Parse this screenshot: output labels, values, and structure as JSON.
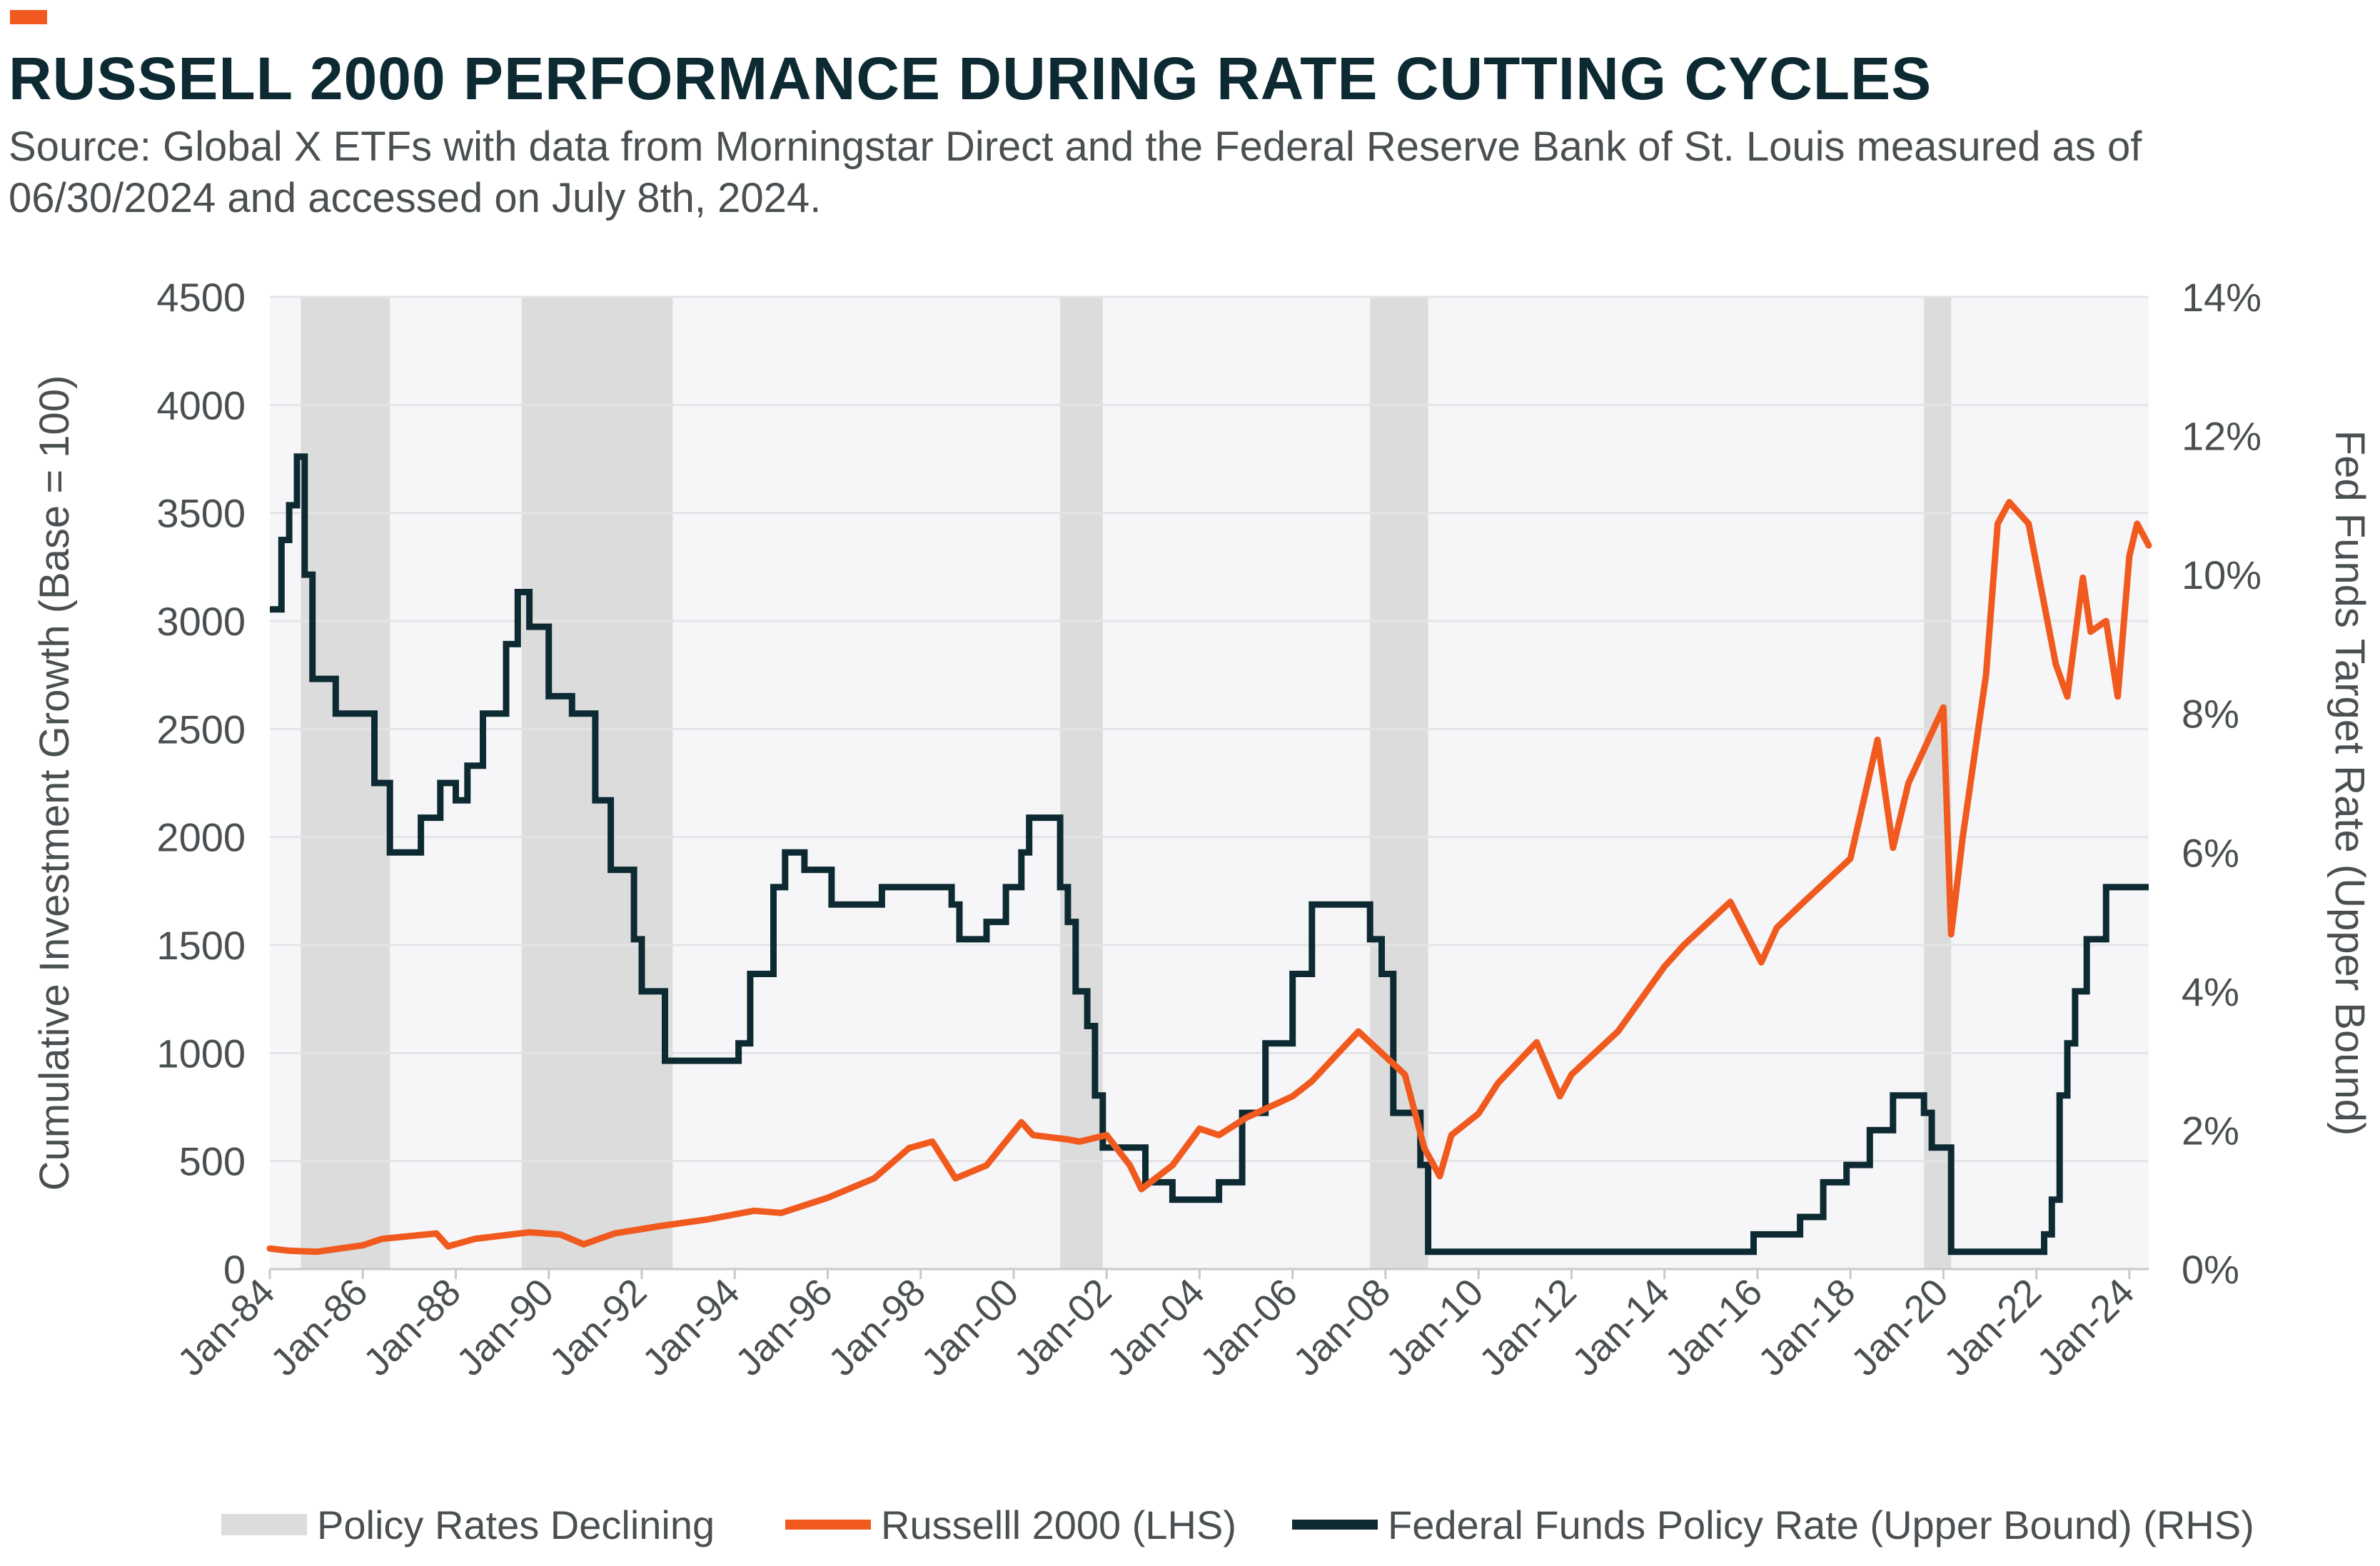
{
  "header": {
    "title": "RUSSELL 2000 PERFORMANCE DURING RATE CUTTING CYCLES",
    "subtitle": "Source: Global X ETFs with data from Morningstar Direct and the Federal Reserve Bank of St. Louis measured as of 06/30/2024 and accessed on July 8th, 2024."
  },
  "colors": {
    "accent": "#f05a1e",
    "russell": "#f05a1e",
    "fed": "#0d2a33",
    "shade": "#dcdcdc",
    "plot_bg": "#f6f6f8"
  },
  "chart_data": {
    "type": "line",
    "x_type": "date",
    "x_range": [
      "1984-01",
      "2024-06"
    ],
    "x_ticks": [
      "Jan-84",
      "Jan-86",
      "Jan-88",
      "Jan-90",
      "Jan-92",
      "Jan-94",
      "Jan-96",
      "Jan-98",
      "Jan-00",
      "Jan-02",
      "Jan-04",
      "Jan-06",
      "Jan-08",
      "Jan-10",
      "Jan-12",
      "Jan-14",
      "Jan-16",
      "Jan-18",
      "Jan-20",
      "Jan-22",
      "Jan-24"
    ],
    "x_tick_dates": [
      "1984-01",
      "1986-01",
      "1988-01",
      "1990-01",
      "1992-01",
      "1994-01",
      "1996-01",
      "1998-01",
      "2000-01",
      "2002-01",
      "2004-01",
      "2006-01",
      "2008-01",
      "2010-01",
      "2012-01",
      "2014-01",
      "2016-01",
      "2018-01",
      "2020-01",
      "2022-01",
      "2024-01"
    ],
    "ylabel_left": "Cumulative Investment Growth (Base = 100)",
    "ylabel_right": "Fed Funds Target Rate (Upper Bound)",
    "ylim_left": [
      0,
      4500
    ],
    "ylim_right": [
      0,
      14
    ],
    "y_ticks_left": [
      "0",
      "500",
      "1000",
      "1500",
      "2000",
      "2500",
      "3000",
      "3500",
      "4000",
      "4500"
    ],
    "y_ticks_right": [
      "0%",
      "2%",
      "4%",
      "6%",
      "8%",
      "10%",
      "12%",
      "14%"
    ],
    "y_tick_values_left": [
      0,
      500,
      1000,
      1500,
      2000,
      2500,
      3000,
      3500,
      4000,
      4500
    ],
    "y_tick_values_right": [
      0,
      2,
      4,
      6,
      8,
      10,
      12,
      14
    ],
    "grid": "horizontal",
    "legend_position": "bottom",
    "shaded_periods": {
      "name": "Policy Rates Declining",
      "ranges": [
        [
          "1984-09",
          "1986-08"
        ],
        [
          "1989-06",
          "1992-09"
        ],
        [
          "2001-01",
          "2001-12"
        ],
        [
          "2007-09",
          "2008-12"
        ],
        [
          "2019-08",
          "2020-03"
        ]
      ]
    },
    "series": [
      {
        "name": "Russelll 2000 (LHS)",
        "axis": "left",
        "x": [
          "1984-01",
          "1984-06",
          "1985-01",
          "1986-01",
          "1986-06",
          "1987-08",
          "1987-11",
          "1988-06",
          "1989-08",
          "1990-04",
          "1990-10",
          "1991-06",
          "1992-06",
          "1993-06",
          "1994-06",
          "1995-01",
          "1996-01",
          "1997-01",
          "1997-10",
          "1998-04",
          "1998-10",
          "1999-06",
          "2000-03",
          "2000-06",
          "2001-03",
          "2001-06",
          "2002-01",
          "2002-07",
          "2002-10",
          "2003-06",
          "2004-01",
          "2004-06",
          "2005-01",
          "2006-01",
          "2006-06",
          "2007-06",
          "2007-09",
          "2008-06",
          "2008-11",
          "2009-03",
          "2009-06",
          "2010-01",
          "2010-06",
          "2011-04",
          "2011-10",
          "2012-01",
          "2013-01",
          "2014-01",
          "2014-06",
          "2015-06",
          "2016-02",
          "2016-06",
          "2017-01",
          "2018-01",
          "2018-08",
          "2018-12",
          "2019-04",
          "2020-01",
          "2020-03",
          "2020-06",
          "2020-12",
          "2021-03",
          "2021-06",
          "2021-11",
          "2022-06",
          "2022-09",
          "2023-01",
          "2023-03",
          "2023-07",
          "2023-10",
          "2024-01",
          "2024-03",
          "2024-06"
        ],
        "values": [
          95,
          85,
          80,
          110,
          140,
          165,
          105,
          140,
          170,
          160,
          115,
          165,
          200,
          230,
          270,
          260,
          330,
          420,
          560,
          590,
          420,
          480,
          680,
          620,
          600,
          590,
          620,
          480,
          370,
          480,
          650,
          620,
          700,
          800,
          870,
          1100,
          1050,
          900,
          560,
          430,
          620,
          720,
          860,
          1050,
          800,
          900,
          1100,
          1400,
          1500,
          1700,
          1420,
          1580,
          1700,
          1900,
          2450,
          1950,
          2250,
          2600,
          1550,
          2000,
          2750,
          3450,
          3550,
          3450,
          2800,
          2650,
          3200,
          2950,
          3000,
          2650,
          3300,
          3450,
          3350
        ]
      },
      {
        "name": "Federal Funds Policy Rate (Upper Bound) (RHS)",
        "axis": "right",
        "x": [
          "1984-01",
          "1984-04",
          "1984-06",
          "1984-08",
          "1984-10",
          "1984-12",
          "1985-06",
          "1985-10",
          "1986-04",
          "1986-08",
          "1987-04",
          "1987-09",
          "1988-01",
          "1988-04",
          "1988-08",
          "1989-02",
          "1989-05",
          "1989-08",
          "1990-01",
          "1990-07",
          "1991-01",
          "1991-05",
          "1991-11",
          "1992-01",
          "1992-07",
          "1994-02",
          "1994-05",
          "1994-11",
          "1995-02",
          "1995-07",
          "1996-02",
          "1997-03",
          "1998-09",
          "1998-11",
          "1999-06",
          "1999-11",
          "2000-03",
          "2000-05",
          "2001-01",
          "2001-03",
          "2001-05",
          "2001-08",
          "2001-10",
          "2001-12",
          "2002-11",
          "2003-06",
          "2004-06",
          "2004-12",
          "2005-06",
          "2006-01",
          "2006-06",
          "2007-09",
          "2007-12",
          "2008-03",
          "2008-10",
          "2008-12",
          "2015-12",
          "2016-12",
          "2017-06",
          "2017-12",
          "2018-06",
          "2018-12",
          "2019-08",
          "2019-10",
          "2020-03",
          "2022-03",
          "2022-05",
          "2022-07",
          "2022-09",
          "2022-11",
          "2023-02",
          "2023-07",
          "2024-06"
        ],
        "values": [
          9.5,
          10.5,
          11.0,
          11.7,
          10.0,
          8.5,
          8.0,
          8.0,
          7.0,
          6.0,
          6.5,
          7.0,
          6.75,
          7.25,
          8.0,
          9.0,
          9.75,
          9.25,
          8.25,
          8.0,
          6.75,
          5.75,
          4.75,
          4.0,
          3.0,
          3.25,
          4.25,
          5.5,
          6.0,
          5.75,
          5.25,
          5.5,
          5.25,
          4.75,
          5.0,
          5.5,
          6.0,
          6.5,
          5.5,
          5.0,
          4.0,
          3.5,
          2.5,
          1.75,
          1.25,
          1.0,
          1.25,
          2.25,
          3.25,
          4.25,
          5.25,
          4.75,
          4.25,
          2.25,
          1.5,
          0.25,
          0.5,
          0.75,
          1.25,
          1.5,
          2.0,
          2.5,
          2.25,
          1.75,
          0.25,
          0.5,
          1.0,
          2.5,
          3.25,
          4.0,
          4.75,
          5.5,
          5.5
        ]
      }
    ]
  },
  "legend": {
    "shade_label": "Policy Rates Declining",
    "russell_label": "Russelll 2000 (LHS)",
    "fed_label": "Federal Funds Policy Rate (Upper Bound) (RHS)"
  }
}
